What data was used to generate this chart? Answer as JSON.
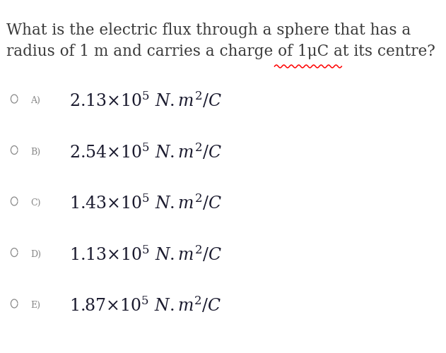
{
  "background_color": "#ffffff",
  "question_line1": "What is the electric flux through a sphere that has a",
  "question_line2": "radius of 1 m and carries a charge of 1μC at its centre?",
  "options": [
    {
      "label": "A)",
      "text": "$2.13{\\times}10^5\\ N{.}m^2/C$"
    },
    {
      "label": "B)",
      "text": "$2.54{\\times}10^5\\ N{.}m^2/C$"
    },
    {
      "label": "C)",
      "text": "$1.43{\\times}10^5\\ N{.}m^2/C$"
    },
    {
      "label": "D)",
      "text": "$1.13{\\times}10^5\\ N{.}m^2/C$"
    },
    {
      "label": "E)",
      "text": "$1.87{\\times}10^5\\ N{.}m^2/C$"
    }
  ],
  "question_fontsize": 15.5,
  "option_label_fontsize": 9,
  "option_value_fontsize": 17,
  "question_color": "#3a3a3a",
  "option_value_color": "#1a1a2e",
  "radio_color": "#888888",
  "label_color": "#888888",
  "figsize": [
    6.31,
    5.0
  ],
  "dpi": 100
}
